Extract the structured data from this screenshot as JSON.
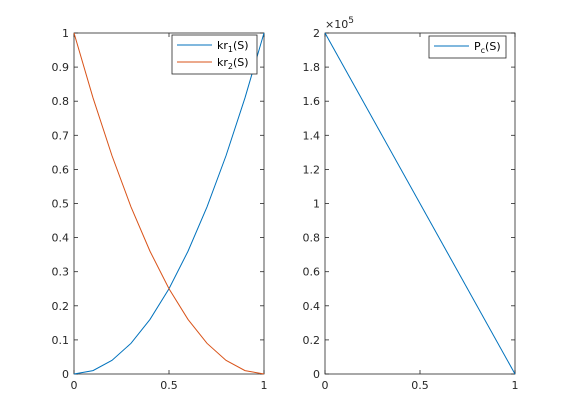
{
  "chart_data": [
    {
      "type": "line",
      "xlim": [
        0,
        1
      ],
      "ylim": [
        0,
        1
      ],
      "x_ticks": [
        "0",
        "0.5",
        "1"
      ],
      "y_ticks": [
        "0",
        "0.1",
        "0.2",
        "0.3",
        "0.4",
        "0.5",
        "0.6",
        "0.7",
        "0.8",
        "0.9",
        "1"
      ],
      "legend_position": "top-right",
      "series": [
        {
          "name": "kr",
          "name_subscript": "1",
          "name_suffix": "(S)",
          "color": "#0072bd",
          "x": [
            0,
            0.1,
            0.2,
            0.3,
            0.4,
            0.5,
            0.6,
            0.7,
            0.8,
            0.9,
            1
          ],
          "y": [
            0,
            0.01,
            0.04,
            0.09,
            0.16,
            0.25,
            0.36,
            0.49,
            0.64,
            0.81,
            1
          ]
        },
        {
          "name": "kr",
          "name_subscript": "2",
          "name_suffix": "(S)",
          "color": "#d95319",
          "x": [
            0,
            0.1,
            0.2,
            0.3,
            0.4,
            0.5,
            0.6,
            0.7,
            0.8,
            0.9,
            1
          ],
          "y": [
            1,
            0.81,
            0.64,
            0.49,
            0.36,
            0.25,
            0.16,
            0.09,
            0.04,
            0.01,
            0
          ]
        }
      ]
    },
    {
      "type": "line",
      "xlim": [
        0,
        1
      ],
      "ylim": [
        0,
        200000
      ],
      "x_ticks": [
        "0",
        "0.5",
        "1"
      ],
      "y_ticks": [
        "0",
        "0.2",
        "0.4",
        "0.6",
        "0.8",
        "1",
        "1.2",
        "1.4",
        "1.6",
        "1.8",
        "2"
      ],
      "y_exponent": {
        "base": "×10",
        "power": "5"
      },
      "legend_position": "top-right",
      "series": [
        {
          "name": "P",
          "name_subscript": "c",
          "name_suffix": "(S)",
          "color": "#0072bd",
          "x": [
            0,
            1
          ],
          "y": [
            200000,
            0
          ]
        }
      ]
    }
  ]
}
